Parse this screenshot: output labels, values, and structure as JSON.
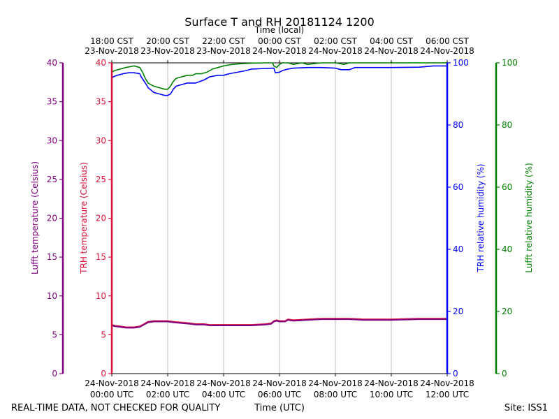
{
  "chart_data": {
    "type": "line",
    "title": "Surface T and RH 20181124 1200",
    "top_xlabel": "Time (local)",
    "xlabel": "Time (UTC)",
    "x_range_hours_utc": [
      0,
      12
    ],
    "bottom_ticks": [
      {
        "line1": "24-Nov-2018",
        "line2": "00:00 UTC",
        "hour": 0
      },
      {
        "line1": "24-Nov-2018",
        "line2": "02:00 UTC",
        "hour": 2
      },
      {
        "line1": "24-Nov-2018",
        "line2": "04:00 UTC",
        "hour": 4
      },
      {
        "line1": "24-Nov-2018",
        "line2": "06:00 UTC",
        "hour": 6
      },
      {
        "line1": "24-Nov-2018",
        "line2": "08:00 UTC",
        "hour": 8
      },
      {
        "line1": "24-Nov-2018",
        "line2": "10:00 UTC",
        "hour": 10
      },
      {
        "line1": "24-Nov-2018",
        "line2": "12:00 UTC",
        "hour": 12
      }
    ],
    "top_ticks": [
      {
        "line1": "18:00 CST",
        "line2": "23-Nov-2018",
        "hour": 0
      },
      {
        "line1": "20:00 CST",
        "line2": "23-Nov-2018",
        "hour": 2
      },
      {
        "line1": "22:00 CST",
        "line2": "23-Nov-2018",
        "hour": 4
      },
      {
        "line1": "00:00 CST",
        "line2": "24-Nov-2018",
        "hour": 6
      },
      {
        "line1": "02:00 CST",
        "line2": "24-Nov-2018",
        "hour": 8
      },
      {
        "line1": "04:00 CST",
        "line2": "24-Nov-2018",
        "hour": 10
      },
      {
        "line1": "06:00 CST",
        "line2": "24-Nov-2018",
        "hour": 12
      }
    ],
    "axes": {
      "lufft_temp": {
        "label": "Lufft temperature (Celsius)",
        "color": "#800080",
        "range": [
          0,
          40
        ],
        "ticks": [
          0,
          5,
          10,
          15,
          20,
          25,
          30,
          35,
          40
        ]
      },
      "trh_temp": {
        "label": "TRH temperature (Celsius)",
        "color": "#dc143c",
        "range": [
          0,
          40
        ],
        "ticks": [
          0,
          5,
          10,
          15,
          20,
          25,
          30,
          35,
          40
        ]
      },
      "trh_rh": {
        "label": "TRH relative humidity (%)",
        "color": "#0000ff",
        "range": [
          0,
          100
        ],
        "ticks": [
          0,
          20,
          40,
          60,
          80,
          100
        ]
      },
      "lufft_rh": {
        "label": "Lufft relative humidity (%)",
        "color": "#008000",
        "range": [
          0,
          100
        ],
        "ticks": [
          0,
          20,
          40,
          60,
          80,
          100
        ]
      }
    },
    "grid": true,
    "series": [
      {
        "key": "lufft_rh",
        "axis": "lufft_rh",
        "color": "#008000",
        "x": [
          0,
          0.1,
          0.3,
          0.5,
          0.8,
          1.0,
          1.1,
          1.2,
          1.3,
          1.5,
          1.7,
          1.9,
          2.0,
          2.1,
          2.2,
          2.3,
          2.5,
          2.7,
          2.9,
          3.0,
          3.2,
          3.4,
          3.6,
          3.8,
          4.0,
          4.3,
          4.6,
          5.0,
          5.5,
          5.75,
          5.8,
          5.9,
          6.0,
          6.1,
          6.3,
          6.5,
          6.8,
          7.0,
          7.5,
          8.0,
          8.3,
          8.5,
          9.0,
          10.0,
          11.0,
          12.0
        ],
        "y": [
          97.0,
          97.5,
          98.0,
          98.5,
          99.0,
          98.5,
          97.0,
          95.0,
          93.5,
          92.5,
          92.0,
          91.5,
          91.5,
          92.5,
          94.0,
          95.0,
          95.5,
          96.0,
          96.0,
          96.5,
          96.5,
          97.0,
          98.0,
          98.5,
          99.0,
          99.5,
          99.7,
          99.9,
          100,
          100,
          99.0,
          98.5,
          99.5,
          100,
          100,
          99.5,
          100,
          99.5,
          100,
          100,
          99.5,
          100,
          100,
          100,
          100,
          100
        ]
      },
      {
        "key": "trh_rh",
        "axis": "trh_rh",
        "color": "#0000ff",
        "x": [
          0,
          0.05,
          0.2,
          0.4,
          0.6,
          0.8,
          1.0,
          1.05,
          1.2,
          1.3,
          1.5,
          1.7,
          1.9,
          2.0,
          2.1,
          2.2,
          2.3,
          2.5,
          2.7,
          3.0,
          3.3,
          3.5,
          3.8,
          4.0,
          4.2,
          4.5,
          4.8,
          5.0,
          5.5,
          5.8,
          5.85,
          6.0,
          6.1,
          6.3,
          6.5,
          7.0,
          7.5,
          8.0,
          8.2,
          8.5,
          8.7,
          9.0,
          10.0,
          11.0,
          11.5,
          12.0
        ],
        "y": [
          95.0,
          95.5,
          96.0,
          96.5,
          96.8,
          96.8,
          96.5,
          95.5,
          93.5,
          92.0,
          90.5,
          90.0,
          89.5,
          89.5,
          90.0,
          91.5,
          92.5,
          93.0,
          93.5,
          93.5,
          94.5,
          95.5,
          96.0,
          96.0,
          96.5,
          97.0,
          97.5,
          98.0,
          98.2,
          98.3,
          96.8,
          97.0,
          97.5,
          98.0,
          98.3,
          98.5,
          98.5,
          98.3,
          97.8,
          97.8,
          98.5,
          98.5,
          98.5,
          98.6,
          99.0,
          99.0
        ]
      },
      {
        "key": "trh_temp",
        "axis": "trh_temp",
        "color": "#dc143c",
        "x": [
          0,
          0.1,
          0.3,
          0.5,
          0.8,
          1.0,
          1.1,
          1.3,
          1.5,
          1.8,
          2.0,
          2.2,
          2.5,
          2.8,
          3.0,
          3.3,
          3.5,
          4.0,
          4.5,
          5.0,
          5.5,
          5.7,
          5.8,
          5.9,
          6.0,
          6.2,
          6.3,
          6.5,
          7.0,
          7.5,
          8.0,
          8.5,
          9.0,
          10.0,
          11.0,
          12.0
        ],
        "y": [
          6.3,
          6.2,
          6.1,
          6.0,
          6.0,
          6.1,
          6.3,
          6.7,
          6.8,
          6.8,
          6.8,
          6.7,
          6.6,
          6.5,
          6.4,
          6.4,
          6.3,
          6.3,
          6.3,
          6.3,
          6.4,
          6.5,
          6.8,
          6.9,
          6.8,
          6.8,
          7.0,
          6.9,
          7.0,
          7.1,
          7.1,
          7.1,
          7.0,
          7.0,
          7.1,
          7.1
        ]
      },
      {
        "key": "lufft_temp",
        "axis": "lufft_temp",
        "color": "#800080",
        "x": [
          0,
          0.1,
          0.3,
          0.5,
          0.8,
          1.0,
          1.1,
          1.3,
          1.5,
          1.8,
          2.0,
          2.2,
          2.5,
          2.8,
          3.0,
          3.3,
          3.5,
          4.0,
          4.5,
          5.0,
          5.5,
          5.7,
          5.8,
          5.9,
          6.0,
          6.2,
          6.3,
          6.5,
          7.0,
          7.5,
          8.0,
          8.5,
          9.0,
          10.0,
          11.0,
          12.0
        ],
        "y": [
          6.2,
          6.1,
          6.0,
          5.9,
          5.9,
          6.0,
          6.2,
          6.6,
          6.7,
          6.7,
          6.7,
          6.6,
          6.5,
          6.4,
          6.3,
          6.3,
          6.2,
          6.2,
          6.2,
          6.2,
          6.3,
          6.4,
          6.7,
          6.8,
          6.7,
          6.7,
          6.9,
          6.8,
          6.9,
          7.0,
          7.0,
          7.0,
          6.9,
          6.9,
          7.0,
          7.0
        ]
      }
    ]
  },
  "footer": {
    "quality_note": "REAL-TIME DATA, NOT CHECKED FOR QUALITY",
    "site": "Site: ISS1"
  }
}
